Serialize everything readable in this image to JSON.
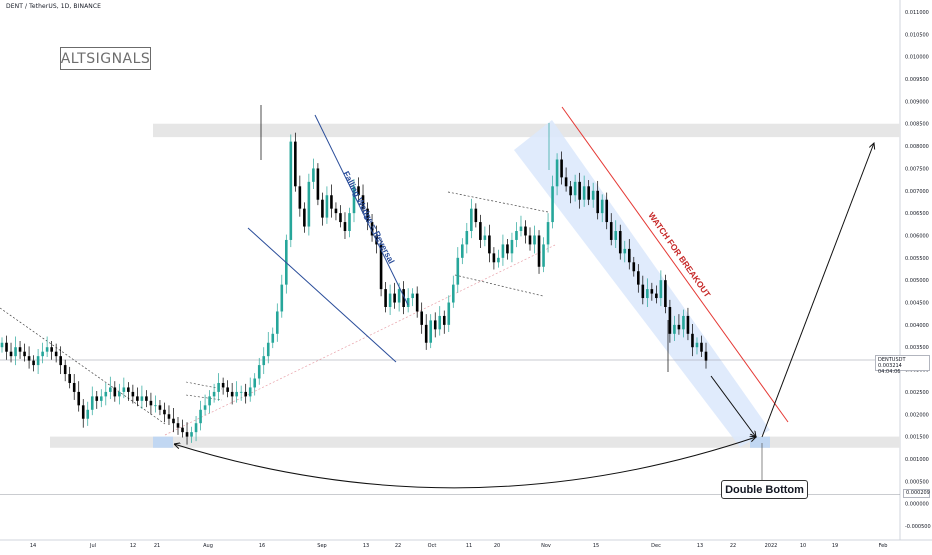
{
  "header": {
    "symbol_title": "DENT / TetherUS, 1D, BINANCE",
    "brand": "ALTSIGNALS"
  },
  "ticker": {
    "symbol": "DENTUSDT",
    "price": "0.003214",
    "countdown": "04:04:06"
  },
  "bottom_price_tag": "0.000209",
  "labels": {
    "double_bottom": "Double Bottom",
    "falling_wedge": "Falling Wedge = Reversal",
    "watch_breakout": "WATCH FOR BREAKOUT"
  },
  "colors": {
    "up": "#26a69a",
    "down": "#000000",
    "wedge_line": "#2a4d9a",
    "breakout_line": "#e53935",
    "channel_fill": "#dbe8fb",
    "zone_fill": "#e6e6e6"
  },
  "chart_data": {
    "type": "candlestick",
    "title": "DENT / TetherUS, 1D, BINANCE",
    "ylim": [
      -0.0005,
      0.011
    ],
    "y_ticks": [
      "0.011000",
      "0.010500",
      "0.010000",
      "0.009500",
      "0.009000",
      "0.008500",
      "0.008000",
      "0.007500",
      "0.007000",
      "0.006500",
      "0.006000",
      "0.005500",
      "0.005000",
      "0.004500",
      "0.004000",
      "0.003500",
      "0.003000",
      "0.002500",
      "0.002000",
      "0.001500",
      "0.001000",
      "0.000500",
      "0.000000",
      "-0.000500"
    ],
    "x_ticks": [
      "14",
      "Jul",
      "12",
      "21",
      "Aug",
      "16",
      "Sep",
      "13",
      "22",
      "Oct",
      "11",
      "20",
      "Nov",
      "15",
      "Dec",
      "13",
      "22",
      "2022",
      "10",
      "19",
      "Feb"
    ],
    "last_price": 0.003214,
    "resistance_zone": [
      0.0082,
      0.0085
    ],
    "support_zone": [
      0.00125,
      0.0015
    ],
    "close_series": [
      0.0036,
      0.0034,
      0.0033,
      0.0035,
      0.0034,
      0.0033,
      0.0032,
      0.0031,
      0.0033,
      0.0034,
      0.0035,
      0.0034,
      0.0033,
      0.0031,
      0.0029,
      0.0027,
      0.0025,
      0.0022,
      0.0019,
      0.0021,
      0.0024,
      0.0023,
      0.0024,
      0.0025,
      0.0026,
      0.0024,
      0.0025,
      0.0026,
      0.0025,
      0.0024,
      0.0023,
      0.0024,
      0.0023,
      0.0022,
      0.0022,
      0.0021,
      0.002,
      0.0019,
      0.0018,
      0.0017,
      0.0016,
      0.0015,
      0.0016,
      0.0018,
      0.0021,
      0.0022,
      0.0024,
      0.0025,
      0.0027,
      0.0026,
      0.0025,
      0.0024,
      0.0025,
      0.0025,
      0.0024,
      0.0026,
      0.0028,
      0.0031,
      0.0033,
      0.0036,
      0.0038,
      0.0043,
      0.0049,
      0.0059,
      0.0081,
      0.0071,
      0.0066,
      0.0062,
      0.0072,
      0.0075,
      0.0068,
      0.0064,
      0.0069,
      0.0066,
      0.0065,
      0.0063,
      0.0061,
      0.0065,
      0.0071,
      0.0069,
      0.0066,
      0.0063,
      0.006,
      0.0058,
      0.0048,
      0.0044,
      0.0047,
      0.0045,
      0.0048,
      0.0044,
      0.0046,
      0.0047,
      0.0043,
      0.004,
      0.0036,
      0.0041,
      0.0039,
      0.0042,
      0.004,
      0.0045,
      0.0049,
      0.0055,
      0.0058,
      0.0061,
      0.0066,
      0.0063,
      0.0059,
      0.006,
      0.0056,
      0.0054,
      0.0055,
      0.0058,
      0.0056,
      0.0059,
      0.0061,
      0.0062,
      0.006,
      0.0058,
      0.006,
      0.0053,
      0.0058,
      0.0063,
      0.0071,
      0.0077,
      0.0073,
      0.0071,
      0.0069,
      0.0072,
      0.0068,
      0.0071,
      0.0068,
      0.007,
      0.0065,
      0.0068,
      0.0063,
      0.0059,
      0.0061,
      0.0056,
      0.0057,
      0.0054,
      0.0052,
      0.0049,
      0.0046,
      0.0048,
      0.0047,
      0.0046,
      0.005,
      0.0044,
      0.0038,
      0.004,
      0.0039,
      0.0042,
      0.0038,
      0.0035,
      0.0036,
      0.0034,
      0.0032
    ]
  }
}
